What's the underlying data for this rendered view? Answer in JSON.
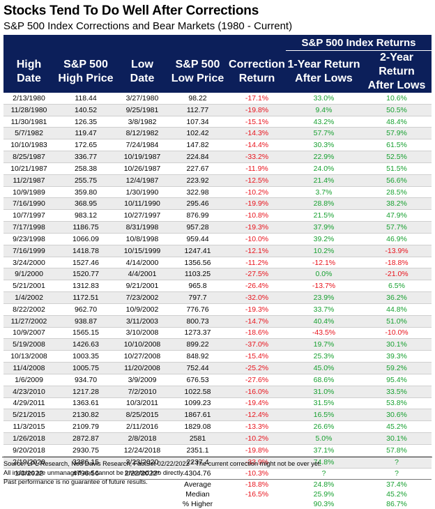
{
  "title": "Stocks Tend To Do Well After Corrections",
  "subtitle": "S&P 500 Index Corrections and Bear Markets (1980 - Current)",
  "super_header": "S&P 500 Index Returns",
  "headers": {
    "high_date": [
      "High",
      "Date"
    ],
    "high_price": [
      "S&P 500",
      "High Price"
    ],
    "low_date": [
      "Low",
      "Date"
    ],
    "low_price": [
      "S&P 500",
      "Low Price"
    ],
    "correction": [
      "Correction",
      "Return"
    ],
    "one_year": [
      "1-Year Return",
      "After Lows"
    ],
    "two_year": [
      "2-Year Return",
      "After Lows"
    ]
  },
  "rows": [
    [
      "2/13/1980",
      "118.44",
      "3/27/1980",
      "98.22",
      "-17.1%",
      "33.0%",
      "10.6%"
    ],
    [
      "11/28/1980",
      "140.52",
      "9/25/1981",
      "112.77",
      "-19.8%",
      "9.4%",
      "50.5%"
    ],
    [
      "11/30/1981",
      "126.35",
      "3/8/1982",
      "107.34",
      "-15.1%",
      "43.2%",
      "48.4%"
    ],
    [
      "5/7/1982",
      "119.47",
      "8/12/1982",
      "102.42",
      "-14.3%",
      "57.7%",
      "57.9%"
    ],
    [
      "10/10/1983",
      "172.65",
      "7/24/1984",
      "147.82",
      "-14.4%",
      "30.3%",
      "61.5%"
    ],
    [
      "8/25/1987",
      "336.77",
      "10/19/1987",
      "224.84",
      "-33.2%",
      "22.9%",
      "52.5%"
    ],
    [
      "10/21/1987",
      "258.38",
      "10/26/1987",
      "227.67",
      "-11.9%",
      "24.0%",
      "51.5%"
    ],
    [
      "11/2/1987",
      "255.75",
      "12/4/1987",
      "223.92",
      "-12.5%",
      "21.4%",
      "56.6%"
    ],
    [
      "10/9/1989",
      "359.80",
      "1/30/1990",
      "322.98",
      "-10.2%",
      "3.7%",
      "28.5%"
    ],
    [
      "7/16/1990",
      "368.95",
      "10/11/1990",
      "295.46",
      "-19.9%",
      "28.8%",
      "38.2%"
    ],
    [
      "10/7/1997",
      "983.12",
      "10/27/1997",
      "876.99",
      "-10.8%",
      "21.5%",
      "47.9%"
    ],
    [
      "7/17/1998",
      "1186.75",
      "8/31/1998",
      "957.28",
      "-19.3%",
      "37.9%",
      "57.7%"
    ],
    [
      "9/23/1998",
      "1066.09",
      "10/8/1998",
      "959.44",
      "-10.0%",
      "39.2%",
      "46.9%"
    ],
    [
      "7/16/1999",
      "1418.78",
      "10/15/1999",
      "1247.41",
      "-12.1%",
      "10.2%",
      "-13.9%"
    ],
    [
      "3/24/2000",
      "1527.46",
      "4/14/2000",
      "1356.56",
      "-11.2%",
      "-12.1%",
      "-18.8%"
    ],
    [
      "9/1/2000",
      "1520.77",
      "4/4/2001",
      "1103.25",
      "-27.5%",
      "0.0%",
      "-21.0%"
    ],
    [
      "5/21/2001",
      "1312.83",
      "9/21/2001",
      "965.8",
      "-26.4%",
      "-13.7%",
      "6.5%"
    ],
    [
      "1/4/2002",
      "1172.51",
      "7/23/2002",
      "797.7",
      "-32.0%",
      "23.9%",
      "36.2%"
    ],
    [
      "8/22/2002",
      "962.70",
      "10/9/2002",
      "776.76",
      "-19.3%",
      "33.7%",
      "44.8%"
    ],
    [
      "11/27/2002",
      "938.87",
      "3/11/2003",
      "800.73",
      "-14.7%",
      "40.4%",
      "51.0%"
    ],
    [
      "10/9/2007",
      "1565.15",
      "3/10/2008",
      "1273.37",
      "-18.6%",
      "-43.5%",
      "-10.0%"
    ],
    [
      "5/19/2008",
      "1426.63",
      "10/10/2008",
      "899.22",
      "-37.0%",
      "19.7%",
      "30.1%"
    ],
    [
      "10/13/2008",
      "1003.35",
      "10/27/2008",
      "848.92",
      "-15.4%",
      "25.3%",
      "39.3%"
    ],
    [
      "11/4/2008",
      "1005.75",
      "11/20/2008",
      "752.44",
      "-25.2%",
      "45.0%",
      "59.2%"
    ],
    [
      "1/6/2009",
      "934.70",
      "3/9/2009",
      "676.53",
      "-27.6%",
      "68.6%",
      "95.4%"
    ],
    [
      "4/23/2010",
      "1217.28",
      "7/2/2010",
      "1022.58",
      "-16.0%",
      "31.0%",
      "33.5%"
    ],
    [
      "4/29/2011",
      "1363.61",
      "10/3/2011",
      "1099.23",
      "-19.4%",
      "31.5%",
      "53.8%"
    ],
    [
      "5/21/2015",
      "2130.82",
      "8/25/2015",
      "1867.61",
      "-12.4%",
      "16.5%",
      "30.6%"
    ],
    [
      "11/3/2015",
      "2109.79",
      "2/11/2016",
      "1829.08",
      "-13.3%",
      "26.6%",
      "45.2%"
    ],
    [
      "1/26/2018",
      "2872.87",
      "2/8/2018",
      "2581",
      "-10.2%",
      "5.0%",
      "30.1%"
    ],
    [
      "9/20/2018",
      "2930.75",
      "12/24/2018",
      "2351.1",
      "-19.8%",
      "37.1%",
      "57.8%"
    ],
    [
      "2/19/2020",
      "3386.15",
      "3/23/2020",
      "2237.4",
      "-33.9%",
      "74.8%",
      "?"
    ],
    [
      "1/3/2022",
      "4796.56",
      "2/22/2022*",
      "4304.76",
      "-10.3%",
      "?",
      "?"
    ]
  ],
  "summary": [
    {
      "label": "Average",
      "correction": "-18.8%",
      "one_year": "24.8%",
      "two_year": "37.4%"
    },
    {
      "label": "Median",
      "correction": "-16.5%",
      "one_year": "25.9%",
      "two_year": "45.2%"
    },
    {
      "label": "% Higher",
      "correction": "",
      "one_year": "90.3%",
      "two_year": "86.7%"
    }
  ],
  "footnotes": [
    "Source: LPL Research, Ned Davis Research, FactSet 02/22/2022   * The current correction might not be over yet.",
    "All indexes are unmanaged and cannot be invested into directly.",
    "Past performance is no guarantee of future results."
  ],
  "colors": {
    "header_bg": "#0c1f5a",
    "negative": "#e8111a",
    "positive": "#17a030",
    "stripe": "#ececec"
  }
}
